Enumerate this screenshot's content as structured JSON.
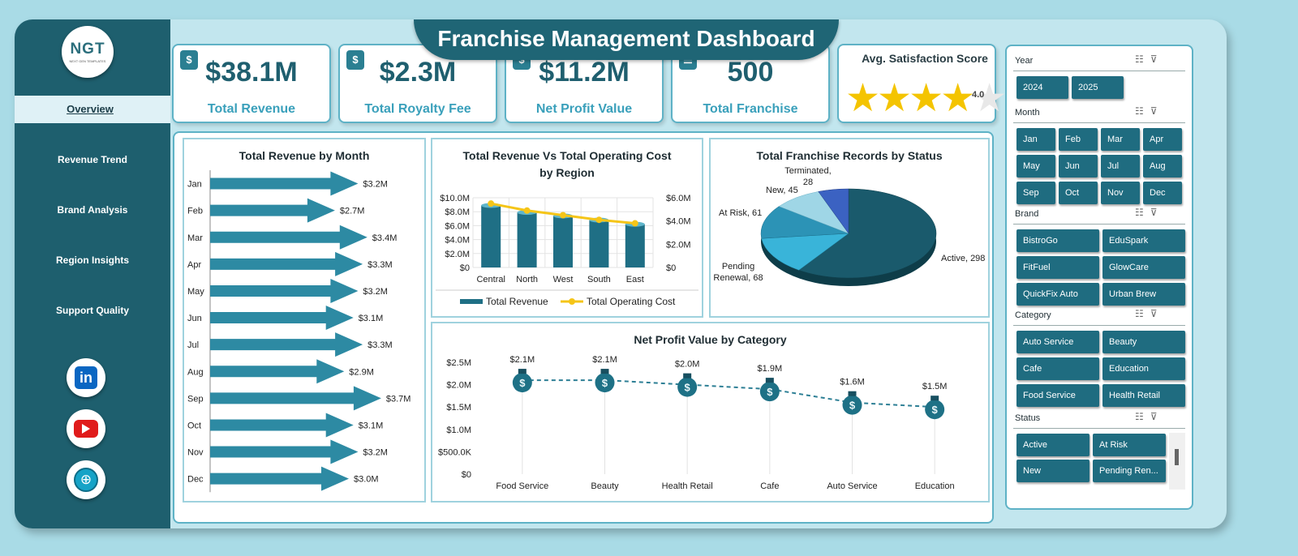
{
  "header": {
    "title": "Franchise Management Dashboard"
  },
  "sidebar": {
    "logo_text": "NGT",
    "logo_sub": "NEXT GEN TEMPLATES",
    "nav": [
      "Overview",
      "Revenue Trend",
      "Brand Analysis",
      "Region Insights",
      "Support Quality"
    ],
    "active": "Overview"
  },
  "kpis": [
    {
      "value": "$38.1M",
      "label": "Total Revenue",
      "icon": "money-bag-icon"
    },
    {
      "value": "$2.3M",
      "label": "Total Royalty Fee",
      "icon": "coin-bag-icon"
    },
    {
      "value": "$11.2M",
      "label": "Net Profit Value",
      "icon": "profit-bag-icon"
    },
    {
      "value": "500",
      "label": "Total Franchise",
      "icon": "checklist-icon"
    }
  ],
  "satisfaction": {
    "title": "Avg. Satisfaction Score",
    "value": "4.0",
    "rating": 4.0,
    "max": 5
  },
  "revenue_by_month": {
    "title": "Total Revenue  by Month",
    "months": [
      "Jan",
      "Feb",
      "Mar",
      "Apr",
      "May",
      "Jun",
      "Jul",
      "Aug",
      "Sep",
      "Oct",
      "Nov",
      "Dec"
    ],
    "labels": [
      "$3.2M",
      "$2.7M",
      "$3.4M",
      "$3.3M",
      "$3.2M",
      "$3.1M",
      "$3.3M",
      "$2.9M",
      "$3.7M",
      "$3.1M",
      "$3.2M",
      "$3.0M"
    ]
  },
  "region_chart": {
    "title_line1": "Total Revenue Vs Total Operating Cost",
    "title_line2": "by Region",
    "left_ticks": [
      "$10.0M",
      "$8.0M",
      "$6.0M",
      "$4.0M",
      "$2.0M",
      "$0"
    ],
    "right_ticks": [
      "$6.0M",
      "$4.0M",
      "$2.0M",
      "$0"
    ],
    "legend_revenue": "Total Revenue",
    "legend_cost": "Total Operating Cost"
  },
  "status_chart": {
    "title": "Total Franchise Records by Status",
    "slices": [
      {
        "name": "Active",
        "label": "Active, 298"
      },
      {
        "name": "Pending Renewal",
        "label_line1": "Pending",
        "label_line2": "Renewal, 68"
      },
      {
        "name": "At Risk",
        "label": "At Risk, 61"
      },
      {
        "name": "New",
        "label": "New, 45"
      },
      {
        "name": "Terminated",
        "label_line1": "Terminated,",
        "label_line2": "28"
      }
    ]
  },
  "category_chart": {
    "title": "Net Profit Value by Category",
    "y_ticks": [
      "$2.5M",
      "$2.0M",
      "$1.5M",
      "$1.0M",
      "$500.0K",
      "$0"
    ],
    "labels": [
      "$2.1M",
      "$2.1M",
      "$2.0M",
      "$1.9M",
      "$1.6M",
      "$1.5M"
    ]
  },
  "slicers": {
    "year": {
      "title": "Year",
      "items": [
        "2024",
        "2025"
      ]
    },
    "month": {
      "title": "Month",
      "items": [
        "Jan",
        "Feb",
        "Mar",
        "Apr",
        "May",
        "Jun",
        "Jul",
        "Aug",
        "Sep",
        "Oct",
        "Nov",
        "Dec"
      ]
    },
    "brand": {
      "title": "Brand",
      "items": [
        "BistroGo",
        "EduSpark",
        "FitFuel",
        "GlowCare",
        "QuickFix Auto",
        "Urban Brew"
      ]
    },
    "category": {
      "title": "Category",
      "items": [
        "Auto Service",
        "Beauty",
        "Cafe",
        "Education",
        "Food Service",
        "Health Retail"
      ]
    },
    "status": {
      "title": "Status",
      "items": [
        "Active",
        "At Risk",
        "New",
        "Pending Ren..."
      ]
    }
  },
  "chart_data": [
    {
      "type": "bar",
      "title": "Total Revenue  by Month",
      "orientation": "horizontal",
      "categories": [
        "Jan",
        "Feb",
        "Mar",
        "Apr",
        "May",
        "Jun",
        "Jul",
        "Aug",
        "Sep",
        "Oct",
        "Nov",
        "Dec"
      ],
      "values": [
        3.2,
        2.7,
        3.4,
        3.3,
        3.2,
        3.1,
        3.3,
        2.9,
        3.7,
        3.1,
        3.2,
        3.0
      ]
    },
    {
      "type": "bar",
      "title": "Total Revenue Vs Total Operating Cost by Region",
      "categories": [
        "Central",
        "North",
        "West",
        "South",
        "East"
      ],
      "series": [
        {
          "name": "Total Revenue",
          "type": "bar",
          "axis": "left",
          "values": [
            8.9,
            7.9,
            7.4,
            6.8,
            6.2
          ]
        },
        {
          "name": "Total Operating Cost",
          "type": "line",
          "axis": "right",
          "values": [
            5.5,
            4.9,
            4.5,
            4.1,
            3.8
          ]
        }
      ],
      "ylim": [
        0,
        10
      ],
      "y2lim": [
        0,
        6
      ],
      "legend": "bottom",
      "grid": true
    },
    {
      "type": "pie",
      "title": "Total Franchise Records by Status",
      "categories": [
        "Active",
        "Pending Renewal",
        "At Risk",
        "New",
        "Terminated"
      ],
      "values": [
        298,
        68,
        61,
        45,
        28
      ]
    },
    {
      "type": "line",
      "title": "Net Profit Value by Category",
      "categories": [
        "Food Service",
        "Beauty",
        "Health Retail",
        "Cafe",
        "Auto Service",
        "Education"
      ],
      "values": [
        2.1,
        2.1,
        2.0,
        1.9,
        1.6,
        1.5
      ],
      "ylim": [
        0,
        2.5
      ]
    }
  ],
  "colors": {
    "teal_dark": "#1f6575",
    "teal": "#2b8aa3",
    "accent_yellow": "#f4c400",
    "line_cost": "#f5c518"
  }
}
